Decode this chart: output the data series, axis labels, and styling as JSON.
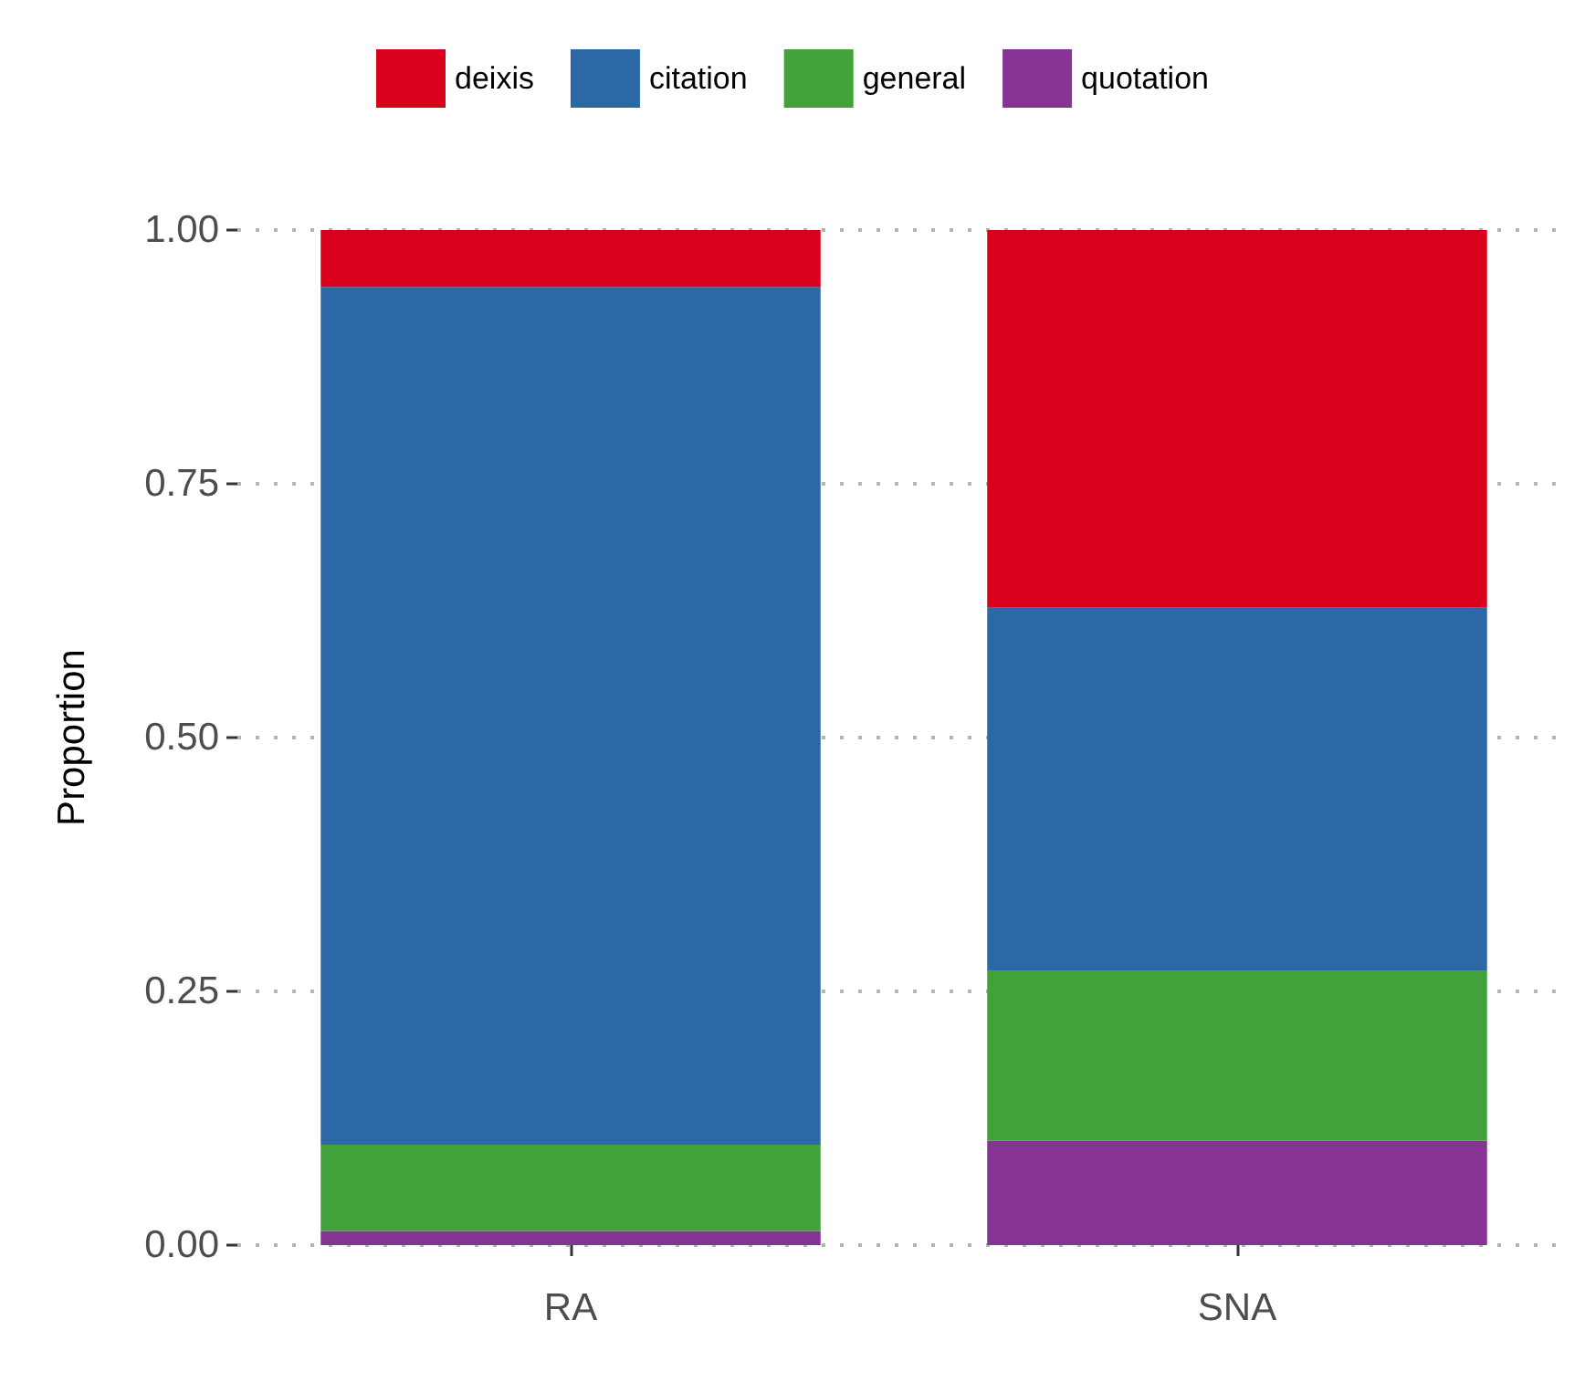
{
  "chart_data": {
    "type": "bar",
    "stacked": true,
    "ylabel": "Proportion",
    "categories": [
      "RA",
      "SNA"
    ],
    "series": [
      {
        "name": "quotation",
        "color": "#853494",
        "values": [
          0.014,
          0.103
        ]
      },
      {
        "name": "general",
        "color": "#41a13b",
        "values": [
          0.085,
          0.167
        ]
      },
      {
        "name": "citation",
        "color": "#2c67a6",
        "values": [
          0.845,
          0.358
        ]
      },
      {
        "name": "deixis",
        "color": "#d9001b",
        "values": [
          0.056,
          0.372
        ]
      }
    ],
    "ylim": [
      0,
      1
    ],
    "yticks": [
      {
        "value": 0,
        "label": "0.00"
      },
      {
        "value": 0.25,
        "label": "0.25"
      },
      {
        "value": 0.5,
        "label": "0.50"
      },
      {
        "value": 0.75,
        "label": "0.75"
      },
      {
        "value": 1,
        "label": "1.00"
      }
    ],
    "grid": "y",
    "legend": "top"
  }
}
